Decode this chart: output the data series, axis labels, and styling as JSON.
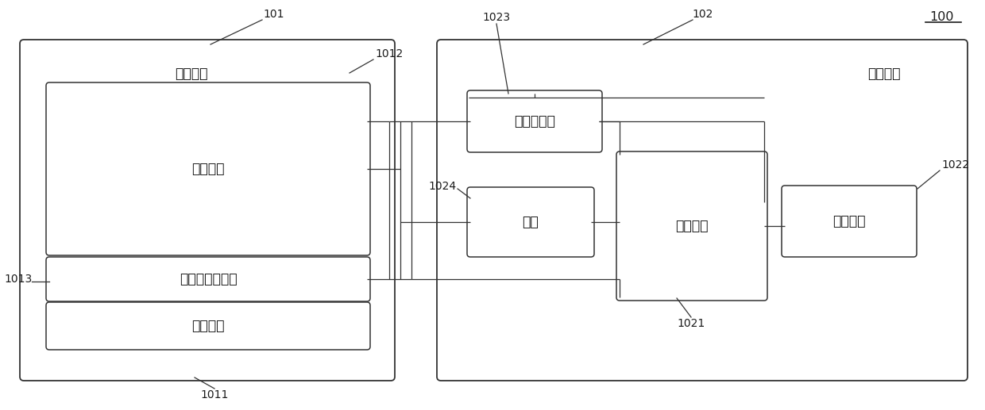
{
  "bg_color": "#ffffff",
  "line_color": "#333333",
  "text_color": "#1a1a1a",
  "fig_width": 12.4,
  "fig_height": 5.17,
  "label_100": "100",
  "label_101": "101",
  "label_102": "102",
  "label_1011": "1011",
  "label_1012": "1012",
  "label_1013": "1013",
  "label_1021": "1021",
  "label_1022": "1022",
  "label_1023": "1023",
  "label_1024": "1024",
  "text_pillow_body": "枕头主体",
  "text_control_sys": "控制系统",
  "text_second_air": "第二气囊",
  "text_pressure_sensor_unit": "压力传感器单元",
  "text_first_air": "第一气囊",
  "text_air_pressure_sensor": "气压传感器",
  "text_air_pump": "气泵",
  "text_control_device": "控制设备",
  "text_power_module": "供电模块"
}
